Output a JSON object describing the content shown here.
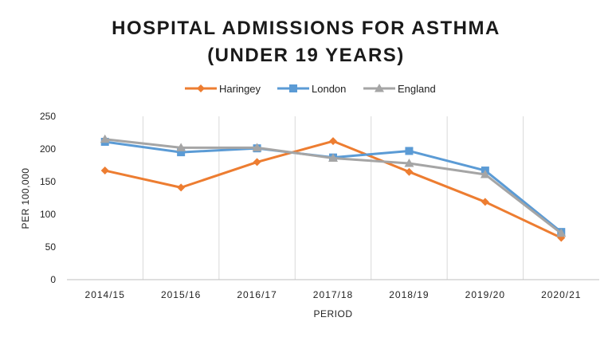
{
  "chart_data": {
    "type": "line",
    "title_lines": [
      "HOSPITAL ADMISSIONS FOR ASTHMA",
      "(UNDER 19 YEARS)"
    ],
    "xlabel": "PERIOD",
    "ylabel": "PER 100,000",
    "ylim": [
      0,
      250
    ],
    "yticks": [
      0,
      50,
      100,
      150,
      200,
      250
    ],
    "grid": "vertical",
    "legend_position": "top",
    "categories": [
      "2014/15",
      "2015/16",
      "2016/17",
      "2017/18",
      "2018/19",
      "2019/20",
      "2020/21"
    ],
    "series": [
      {
        "name": "Haringey",
        "color": "#ED7D31",
        "marker": "diamond",
        "values": [
          167,
          141,
          180,
          212,
          165,
          119,
          64
        ]
      },
      {
        "name": "London",
        "color": "#5B9BD5",
        "marker": "square",
        "values": [
          211,
          195,
          201,
          187,
          197,
          167,
          73
        ]
      },
      {
        "name": "England",
        "color": "#A5A5A5",
        "marker": "triangle",
        "values": [
          215,
          202,
          202,
          186,
          178,
          161,
          71
        ]
      }
    ]
  }
}
